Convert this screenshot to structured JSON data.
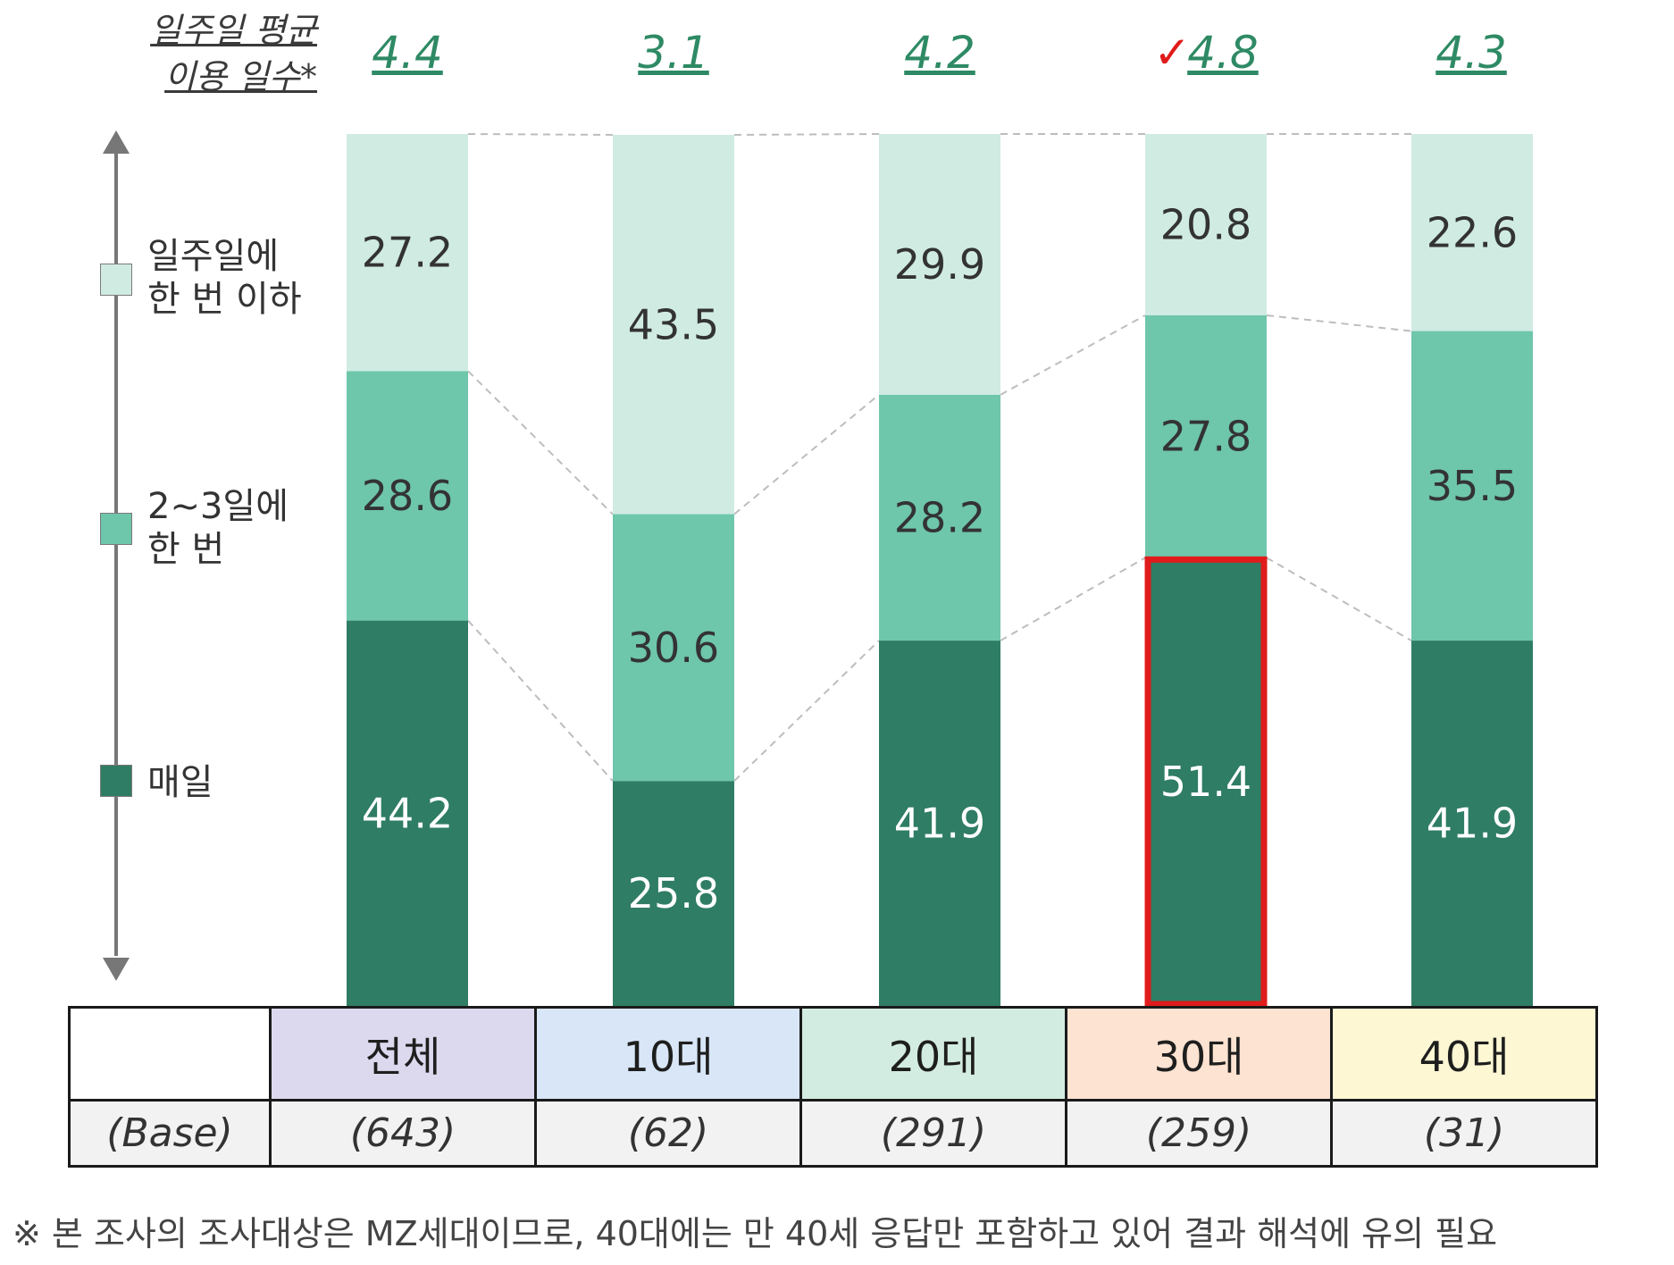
{
  "avg_header": {
    "line1": "일주일 평균",
    "line2": "이용 일수*"
  },
  "highlight_mark": "✓",
  "chart_data": {
    "type": "bar",
    "stacked": true,
    "categories": [
      "전체",
      "10대",
      "20대",
      "30대",
      "40대"
    ],
    "series": [
      {
        "name": "매일",
        "values": [
          44.2,
          25.8,
          41.9,
          51.4,
          41.9
        ],
        "color": "#2f7d64",
        "text_color": "#ffffff"
      },
      {
        "name": "2~3일에 한 번",
        "values": [
          28.6,
          30.6,
          28.2,
          27.8,
          35.5
        ],
        "color": "#6ec6ab",
        "text_color": "#333333"
      },
      {
        "name": "일주일에 한 번 이하",
        "values": [
          27.2,
          43.5,
          29.9,
          20.8,
          22.6
        ],
        "color": "#d0ebe2",
        "text_color": "#333333"
      }
    ],
    "labels": {
      "매일": [
        "44.2",
        "25.8",
        "41.9",
        "51.4",
        "41.9"
      ],
      "2~3일에 한 번": [
        "28.6",
        "30.6",
        "28.2",
        "27.8",
        "35.5"
      ],
      "일주일에 한 번 이하": [
        "27.2",
        "43.5",
        "29.9",
        "20.8",
        "22.6"
      ]
    },
    "avg_days": [
      "4.4",
      "3.1",
      "4.2",
      "4.8",
      "4.3"
    ],
    "highlight_category": "30대",
    "highlight_color": "#e01b1b",
    "ylim": [
      0,
      100
    ],
    "grid": false,
    "legend_placement": "left"
  },
  "legend": {
    "items": [
      {
        "line1": "일주일에",
        "line2": "한 번 이하",
        "color": "#d0ebe2"
      },
      {
        "line1": "2~3일에",
        "line2": "한 번",
        "color": "#6ec6ab"
      },
      {
        "line1": "매일",
        "line2": "",
        "color": "#2f7d64"
      }
    ]
  },
  "table": {
    "header": [
      "",
      "전체",
      "10대",
      "20대",
      "30대",
      "40대"
    ],
    "header_colors": [
      "#ffffff",
      "#dcd9ee",
      "#d8e6f7",
      "#d3ece1",
      "#fde3d1",
      "#fdf7d3"
    ],
    "base_row": [
      "(Base)",
      "(643)",
      "(62)",
      "(291)",
      "(259)",
      "(31)"
    ]
  },
  "note": "※ 본 조사의 조사대상은 MZ세대이므로, 40대에는 만 40세 응답만 포함하고 있어 결과 해석에 유의 필요"
}
